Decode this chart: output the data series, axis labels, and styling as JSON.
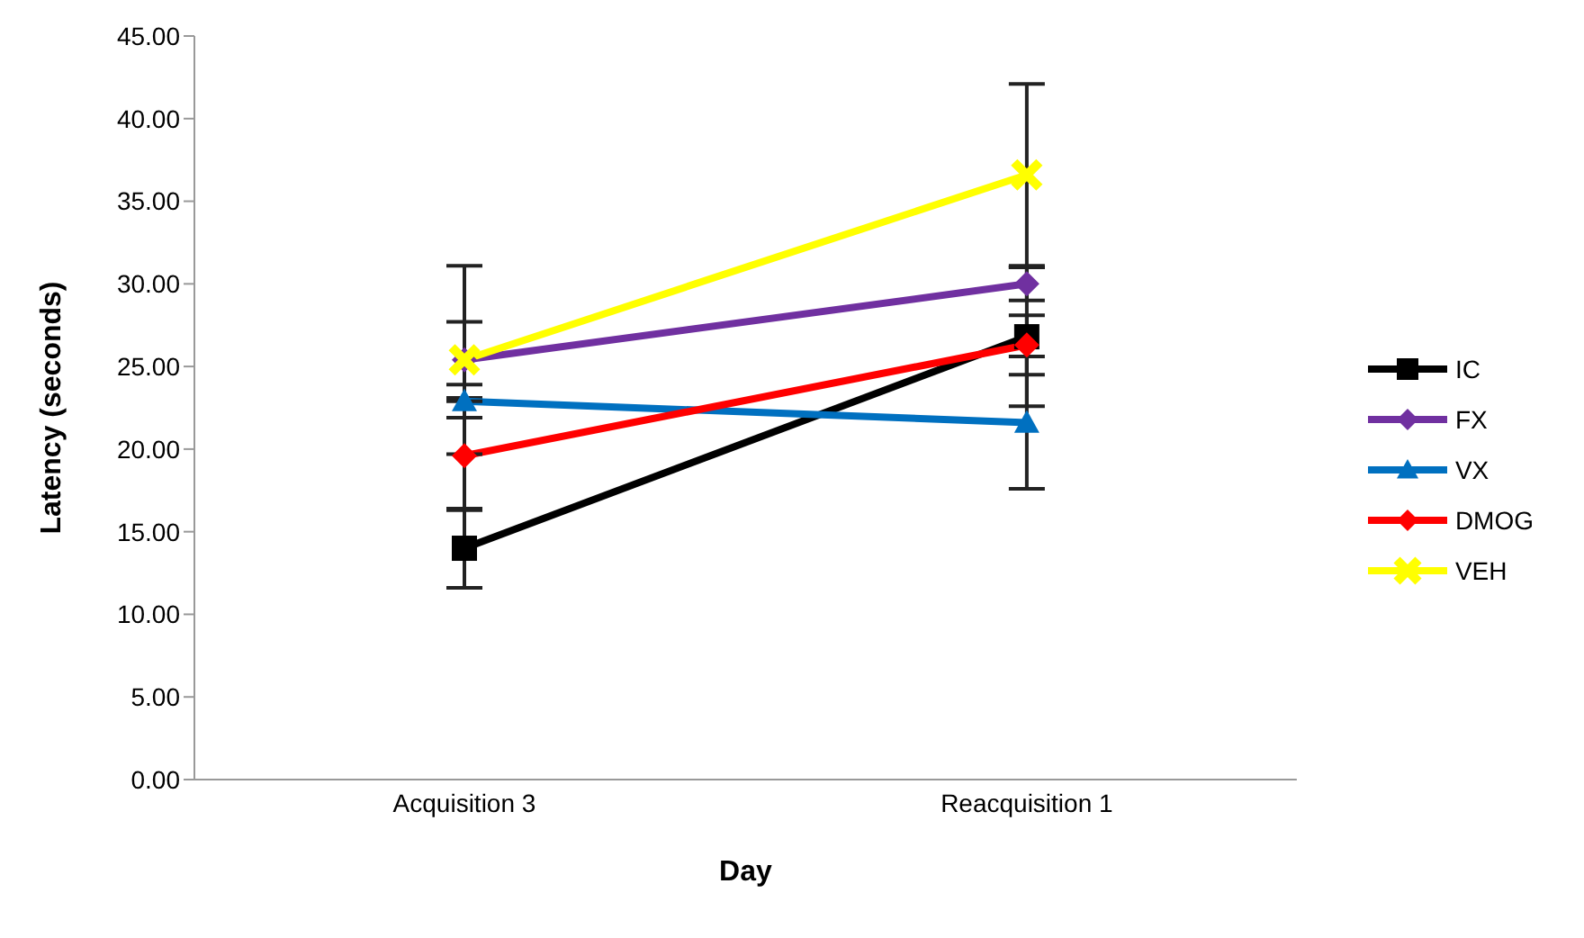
{
  "chart_data": {
    "type": "line",
    "xlabel": "Day",
    "ylabel": "Latency (seconds)",
    "categories": [
      "Acquisition 3",
      "Reacquisition 1"
    ],
    "ylim": [
      0,
      45
    ],
    "yticks": [
      {
        "value": 0,
        "label": "0.00"
      },
      {
        "value": 5,
        "label": "5.00"
      },
      {
        "value": 10,
        "label": "10.00"
      },
      {
        "value": 15,
        "label": "15.00"
      },
      {
        "value": 20,
        "label": "20.00"
      },
      {
        "value": 25,
        "label": "25.00"
      },
      {
        "value": 30,
        "label": "30.00"
      },
      {
        "value": 35,
        "label": "35.00"
      },
      {
        "value": 40,
        "label": "40.00"
      },
      {
        "value": 45,
        "label": "45.00"
      }
    ],
    "grid": false,
    "legend": "right",
    "series": [
      {
        "name": "IC",
        "color": "#000000",
        "marker": "square",
        "values": [
          14.0,
          26.8
        ],
        "errors": [
          2.4,
          4.2
        ]
      },
      {
        "name": "FX",
        "color": "#7030a0",
        "marker": "diamond",
        "values": [
          25.4,
          30.0
        ],
        "errors": [
          2.3,
          1.0
        ]
      },
      {
        "name": "VX",
        "color": "#0070c0",
        "marker": "triangle",
        "values": [
          22.9,
          21.6
        ],
        "errors": [
          1.0,
          4.0
        ]
      },
      {
        "name": "DMOG",
        "color": "#ff0000",
        "marker": "diamond",
        "values": [
          19.6,
          26.3
        ],
        "errors": [
          3.3,
          1.8
        ]
      },
      {
        "name": "VEH",
        "color": "#ffff00",
        "marker": "cross",
        "values": [
          25.4,
          36.6
        ],
        "errors": [
          5.7,
          5.5
        ]
      }
    ]
  }
}
